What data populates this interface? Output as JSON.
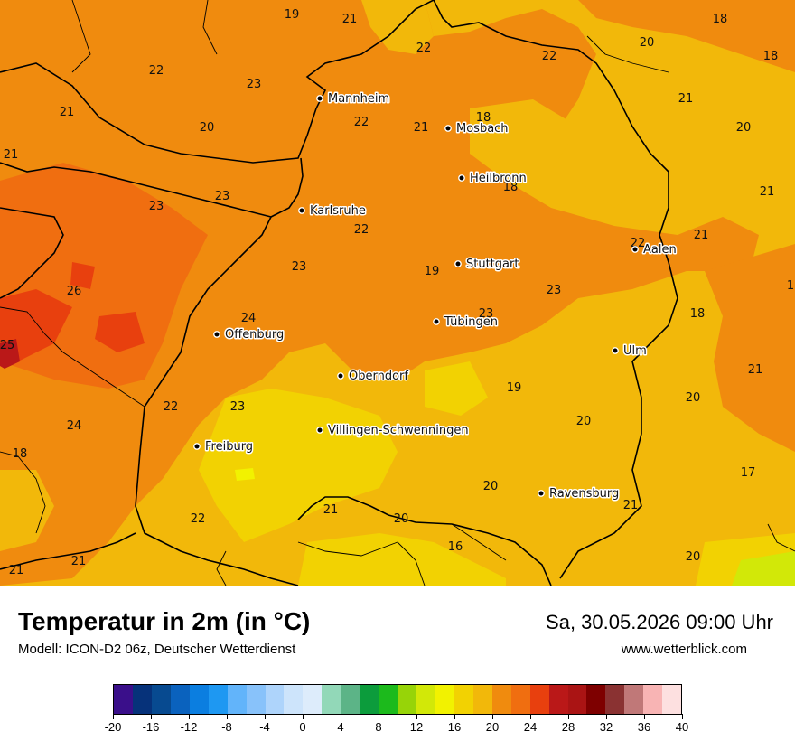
{
  "map": {
    "cities": [
      {
        "name": "Mannheim",
        "id": "mannheim"
      },
      {
        "name": "Mosbach",
        "id": "mosbach"
      },
      {
        "name": "Heilbronn",
        "id": "heilbronn"
      },
      {
        "name": "Karlsruhe",
        "id": "karlsruhe"
      },
      {
        "name": "Stuttgart",
        "id": "stuttgart"
      },
      {
        "name": "Aalen",
        "id": "aalen"
      },
      {
        "name": "Tübingen",
        "id": "tuebingen"
      },
      {
        "name": "Offenburg",
        "id": "offenburg"
      },
      {
        "name": "Ulm",
        "id": "ulm"
      },
      {
        "name": "Oberndorf",
        "id": "oberndorf"
      },
      {
        "name": "Villingen-Schwenningen",
        "id": "villingen"
      },
      {
        "name": "Freiburg",
        "id": "freiburg"
      },
      {
        "name": "Ravensburg",
        "id": "ravensburg"
      }
    ],
    "temperature_labels": [
      "19",
      "21",
      "22",
      "18",
      "20",
      "18",
      "22",
      "23",
      "22",
      "20",
      "22",
      "21",
      "18",
      "21",
      "20",
      "21",
      "21",
      "23",
      "23",
      "18",
      "21",
      "22",
      "22",
      "21",
      "26",
      "23",
      "19",
      "23",
      "23",
      "1",
      "24",
      "18",
      "25",
      "21",
      "19",
      "20",
      "22",
      "23",
      "24",
      "20",
      "18",
      "17",
      "20",
      "21",
      "21",
      "20",
      "22",
      "16",
      "21",
      "20",
      "21"
    ]
  },
  "legend": {
    "title": "Temperatur in 2m (in °C)",
    "subtitle": "Modell: ICON-D2 06z, Deutscher Wetterdienst",
    "datetime": "Sa, 30.05.2026 09:00 Uhr",
    "website": "www.wetterblick.com",
    "colors": [
      "#3a0f8a",
      "#06327a",
      "#074a90",
      "#0a62be",
      "#0b7ee0",
      "#1e98f2",
      "#62b4fa",
      "#88c2fa",
      "#aed4fb",
      "#cde4fb",
      "#ddecfb",
      "#92d8b8",
      "#5cb487",
      "#0c9c3c",
      "#1cba1c",
      "#97d408",
      "#d2e808",
      "#f2f200",
      "#f2d202",
      "#f2b80a",
      "#f08b0e",
      "#f06e10",
      "#e8400e",
      "#ba1818",
      "#aa1414",
      "#7e0000",
      "#8a3232",
      "#c07878",
      "#f8b4b4",
      "#fde0e0"
    ],
    "ticks": [
      "-20",
      "-16",
      "-12",
      "-8",
      "-4",
      "0",
      "4",
      "8",
      "12",
      "16",
      "20",
      "24",
      "28",
      "32",
      "36",
      "40"
    ]
  }
}
